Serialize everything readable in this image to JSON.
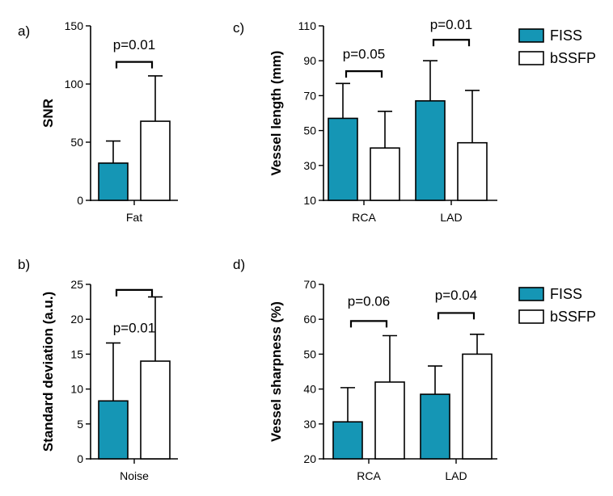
{
  "colors": {
    "fiss": "#1596b5",
    "bssfp": "#ffffff",
    "axis": "#000000"
  },
  "legend": [
    {
      "name": "FISS",
      "color": "#1596b5"
    },
    {
      "name": "bSSFP",
      "color": "#ffffff"
    }
  ],
  "chart_data": [
    {
      "panel": "a)",
      "type": "bar",
      "ylabel": "SNR",
      "ylim": [
        0,
        150
      ],
      "yticks": [
        0,
        50,
        100,
        150
      ],
      "categories": [
        "Fat"
      ],
      "series": [
        {
          "name": "FISS",
          "values": [
            32
          ],
          "errors": [
            19
          ]
        },
        {
          "name": "bSSFP",
          "values": [
            68
          ],
          "errors": [
            39
          ]
        }
      ],
      "annotations": [
        {
          "category": 0,
          "label": "p=0.01",
          "bracket_y": 119,
          "label_y": 134
        }
      ]
    },
    {
      "panel": "b)",
      "type": "bar",
      "ylabel": "Standard  deviation (a.u.)",
      "ylim": [
        0,
        25
      ],
      "yticks": [
        0,
        5,
        10,
        15,
        20,
        25
      ],
      "categories": [
        "Noise"
      ],
      "series": [
        {
          "name": "FISS",
          "values": [
            8.3
          ],
          "errors": [
            8.3
          ]
        },
        {
          "name": "bSSFP",
          "values": [
            14
          ],
          "errors": [
            9.2
          ]
        }
      ],
      "annotations": [
        {
          "category": 0,
          "label": "p=0.01",
          "bracket_y": 24.2,
          "label_y": 18.8
        }
      ]
    },
    {
      "panel": "c)",
      "type": "bar",
      "ylabel": "Vessel length (mm)",
      "ylim": [
        10,
        110
      ],
      "yticks": [
        10,
        30,
        50,
        70,
        90,
        110
      ],
      "categories": [
        "RCA",
        "LAD"
      ],
      "series": [
        {
          "name": "FISS",
          "values": [
            57,
            67
          ],
          "errors": [
            20,
            23
          ]
        },
        {
          "name": "bSSFP",
          "values": [
            40,
            43
          ],
          "errors": [
            21,
            30
          ]
        }
      ],
      "annotations": [
        {
          "category": 0,
          "label": "p=0.05",
          "bracket_y": 84,
          "label_y": 94
        },
        {
          "category": 1,
          "label": "p=0.01",
          "bracket_y": 102,
          "label_y": 111
        }
      ]
    },
    {
      "panel": "d)",
      "type": "bar",
      "ylabel": "Vessel sharpness (%)",
      "ylim": [
        20,
        70
      ],
      "yticks": [
        20,
        30,
        40,
        50,
        60,
        70
      ],
      "categories": [
        "RCA",
        "LAD"
      ],
      "series": [
        {
          "name": "FISS",
          "values": [
            30.6,
            38.5
          ],
          "errors": [
            9.8,
            8.1
          ]
        },
        {
          "name": "bSSFP",
          "values": [
            42,
            50
          ],
          "errors": [
            13.3,
            5.7
          ]
        }
      ],
      "annotations": [
        {
          "category": 0,
          "label": "p=0.06",
          "bracket_y": 59.5,
          "label_y": 65.2
        },
        {
          "category": 1,
          "label": "p=0.04",
          "bracket_y": 61.8,
          "label_y": 67
        }
      ]
    }
  ]
}
